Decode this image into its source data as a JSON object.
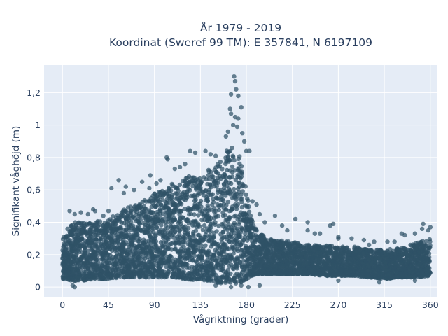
{
  "chart_data": {
    "type": "scatter",
    "title_line1": "År 1979 - 2019",
    "title_line2": "Koordinat (Sweref 99 TM): E 357841, N 6197109",
    "xlabel": "Vågriktning (grader)",
    "ylabel": "Signifikant våghöjd (m)",
    "xlim": [
      -18,
      367
    ],
    "ylim": [
      -0.06,
      1.37
    ],
    "xticks": [
      0,
      45,
      90,
      135,
      180,
      225,
      270,
      315,
      360
    ],
    "xtick_labels": [
      "0",
      "45",
      "90",
      "135",
      "180",
      "225",
      "270",
      "315",
      "360"
    ],
    "yticks": [
      0,
      0.2,
      0.4,
      0.6,
      0.8,
      1.0,
      1.2
    ],
    "ytick_labels": [
      "0",
      "0,2",
      "0,4",
      "0,6",
      "0,8",
      "1",
      "1,2"
    ],
    "grid": true,
    "marker_color": "#2f5266",
    "plot_bg": "#e5ecf6",
    "envelope": {
      "x": [
        0,
        10,
        20,
        30,
        45,
        60,
        75,
        90,
        100,
        110,
        120,
        135,
        145,
        150,
        155,
        160,
        165,
        170,
        175,
        180,
        185,
        190,
        200,
        210,
        225,
        240,
        255,
        270,
        285,
        300,
        315,
        330,
        345,
        360
      ],
      "upper": [
        0.3,
        0.4,
        0.4,
        0.41,
        0.42,
        0.48,
        0.52,
        0.58,
        0.6,
        0.65,
        0.68,
        0.7,
        0.73,
        0.76,
        0.8,
        0.84,
        0.87,
        0.86,
        0.78,
        0.6,
        0.42,
        0.35,
        0.3,
        0.29,
        0.28,
        0.26,
        0.26,
        0.25,
        0.25,
        0.23,
        0.23,
        0.24,
        0.27,
        0.3
      ],
      "lower": [
        0.05,
        0.04,
        0.04,
        0.05,
        0.05,
        0.06,
        0.06,
        0.06,
        0.06,
        0.06,
        0.05,
        0.04,
        0.04,
        0.03,
        0.02,
        0.02,
        0.02,
        0.02,
        0.03,
        0.04,
        0.07,
        0.08,
        0.08,
        0.08,
        0.08,
        0.08,
        0.07,
        0.07,
        0.07,
        0.06,
        0.05,
        0.06,
        0.06,
        0.07
      ]
    },
    "outliers": [
      {
        "x": 168,
        "y": 1.3
      },
      {
        "x": 169,
        "y": 1.27
      },
      {
        "x": 170,
        "y": 1.22
      },
      {
        "x": 165,
        "y": 1.19
      },
      {
        "x": 172,
        "y": 1.18
      },
      {
        "x": 164,
        "y": 1.1
      },
      {
        "x": 175,
        "y": 1.11
      },
      {
        "x": 165,
        "y": 1.07
      },
      {
        "x": 169,
        "y": 1.05
      },
      {
        "x": 172,
        "y": 1.04
      },
      {
        "x": 167,
        "y": 1.0
      },
      {
        "x": 171,
        "y": 0.99
      },
      {
        "x": 160,
        "y": 0.93
      },
      {
        "x": 178,
        "y": 0.9
      },
      {
        "x": 180,
        "y": 0.84
      },
      {
        "x": 183,
        "y": 0.84
      },
      {
        "x": 176,
        "y": 0.95
      },
      {
        "x": 162,
        "y": 0.96
      },
      {
        "x": 125,
        "y": 0.84
      },
      {
        "x": 130,
        "y": 0.83
      },
      {
        "x": 140,
        "y": 0.84
      },
      {
        "x": 145,
        "y": 0.82
      },
      {
        "x": 150,
        "y": 0.81
      },
      {
        "x": 102,
        "y": 0.8
      },
      {
        "x": 103,
        "y": 0.79
      },
      {
        "x": 110,
        "y": 0.73
      },
      {
        "x": 115,
        "y": 0.74
      },
      {
        "x": 120,
        "y": 0.76
      },
      {
        "x": 55,
        "y": 0.66
      },
      {
        "x": 48,
        "y": 0.61
      },
      {
        "x": 60,
        "y": 0.58
      },
      {
        "x": 62,
        "y": 0.62
      },
      {
        "x": 70,
        "y": 0.6
      },
      {
        "x": 78,
        "y": 0.65
      },
      {
        "x": 85,
        "y": 0.61
      },
      {
        "x": 92,
        "y": 0.64
      },
      {
        "x": 86,
        "y": 0.69
      },
      {
        "x": 96,
        "y": 0.66
      },
      {
        "x": 5,
        "y": 0.36
      },
      {
        "x": 7,
        "y": 0.47
      },
      {
        "x": 12,
        "y": 0.45
      },
      {
        "x": 18,
        "y": 0.46
      },
      {
        "x": 25,
        "y": 0.45
      },
      {
        "x": 30,
        "y": 0.48
      },
      {
        "x": 32,
        "y": 0.47
      },
      {
        "x": 40,
        "y": 0.44
      },
      {
        "x": 45,
        "y": 0.47
      },
      {
        "x": 190,
        "y": 0.51
      },
      {
        "x": 186,
        "y": 0.53
      },
      {
        "x": 193,
        "y": 0.45
      },
      {
        "x": 198,
        "y": 0.4
      },
      {
        "x": 208,
        "y": 0.44
      },
      {
        "x": 215,
        "y": 0.38
      },
      {
        "x": 220,
        "y": 0.35
      },
      {
        "x": 228,
        "y": 0.42
      },
      {
        "x": 240,
        "y": 0.4
      },
      {
        "x": 240,
        "y": 0.35
      },
      {
        "x": 247,
        "y": 0.33
      },
      {
        "x": 252,
        "y": 0.33
      },
      {
        "x": 262,
        "y": 0.38
      },
      {
        "x": 265,
        "y": 0.39
      },
      {
        "x": 270,
        "y": 0.31
      },
      {
        "x": 270,
        "y": 0.3
      },
      {
        "x": 283,
        "y": 0.3
      },
      {
        "x": 295,
        "y": 0.29
      },
      {
        "x": 300,
        "y": 0.26
      },
      {
        "x": 305,
        "y": 0.28
      },
      {
        "x": 318,
        "y": 0.28
      },
      {
        "x": 325,
        "y": 0.28
      },
      {
        "x": 332,
        "y": 0.33
      },
      {
        "x": 335,
        "y": 0.32
      },
      {
        "x": 345,
        "y": 0.33
      },
      {
        "x": 352,
        "y": 0.36
      },
      {
        "x": 353,
        "y": 0.39
      },
      {
        "x": 358,
        "y": 0.35
      },
      {
        "x": 360,
        "y": 0.37
      },
      {
        "x": 346,
        "y": 0.27
      },
      {
        "x": 10,
        "y": 0.01
      },
      {
        "x": 12,
        "y": 0.0
      },
      {
        "x": 150,
        "y": 0.01
      },
      {
        "x": 165,
        "y": 0.0
      },
      {
        "x": 175,
        "y": 0.01
      },
      {
        "x": 182,
        "y": 0.0
      },
      {
        "x": 193,
        "y": 0.01
      },
      {
        "x": 270,
        "y": 0.04
      },
      {
        "x": 310,
        "y": 0.03
      },
      {
        "x": 345,
        "y": 0.04
      }
    ]
  }
}
